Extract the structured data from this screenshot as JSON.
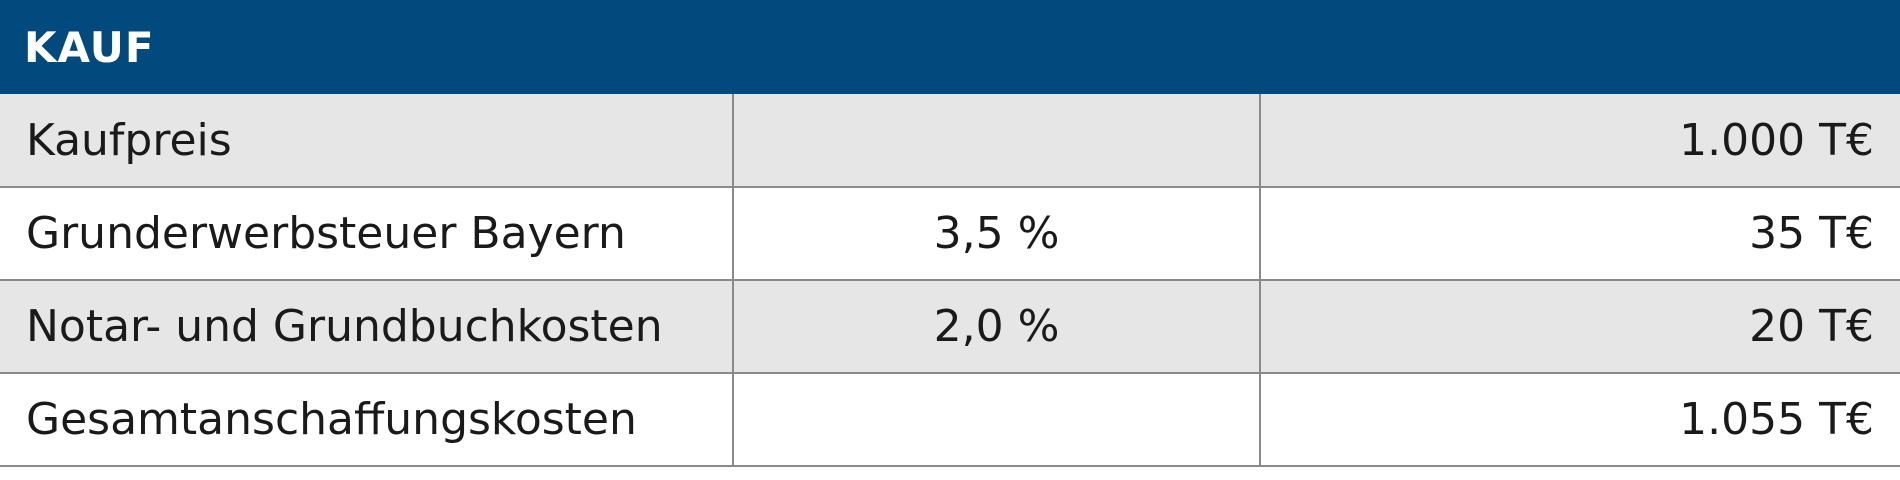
{
  "header": {
    "title": "KAUF"
  },
  "table": {
    "rows": [
      {
        "label": "Kaufpreis",
        "amount": "1.000 T€"
      },
      {
        "label": "Grunderwerbsteuer Bayern",
        "rate": "3,5 %",
        "amount": "35 T€"
      },
      {
        "label": "Notar- und Grundbuchkosten",
        "rate": "2,0 %",
        "amount": "20 T€"
      },
      {
        "label": "Gesamtanschaffungskosten",
        "amount": "1.055 T€"
      }
    ]
  }
}
